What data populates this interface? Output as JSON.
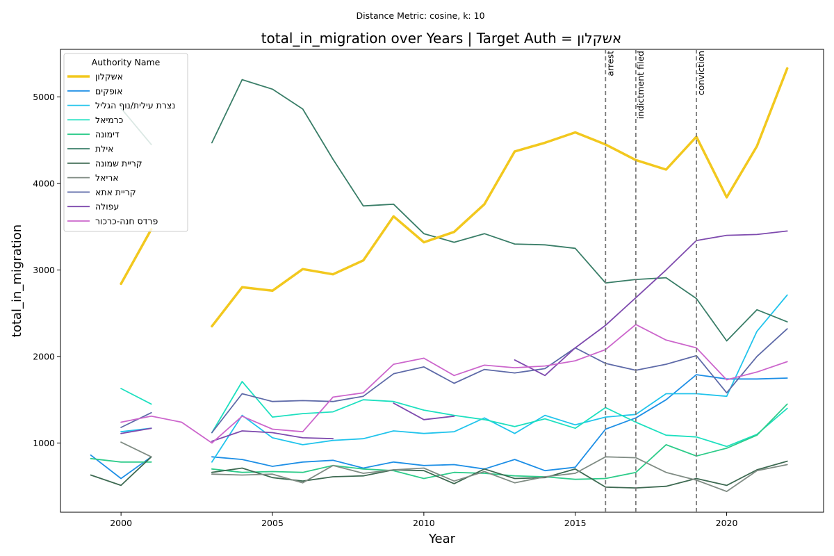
{
  "chart_data": {
    "type": "line",
    "suptitle": "Distance Metric: cosine, k: 10",
    "title": "total_in_migration over Years | Target Auth = אשקלון",
    "xlabel": "Year",
    "ylabel": "total_in_migration",
    "xlim": [
      1998,
      2023.2
    ],
    "ylim": [
      200,
      5550
    ],
    "xticks": [
      2000,
      2005,
      2010,
      2015,
      2020
    ],
    "yticks": [
      1000,
      2000,
      3000,
      4000,
      5000
    ],
    "legend": {
      "title": "Authority Name",
      "placement": "upper-left"
    },
    "x": [
      1999,
      2000,
      2001,
      2002,
      2003,
      2004,
      2005,
      2006,
      2007,
      2008,
      2009,
      2010,
      2011,
      2012,
      2013,
      2014,
      2015,
      2016,
      2017,
      2018,
      2019,
      2020,
      2021,
      2022
    ],
    "events": [
      {
        "year": 2016,
        "label": "arrest"
      },
      {
        "year": 2017,
        "label": "indictment filed"
      },
      {
        "year": 2019,
        "label": "conviction"
      }
    ],
    "series": [
      {
        "name": "אשקלון",
        "color": "#F2C81E",
        "width": 3.5,
        "target": true,
        "values": [
          null,
          2840,
          3470,
          null,
          2350,
          2800,
          2760,
          3010,
          2950,
          3110,
          3620,
          3320,
          3440,
          3760,
          4370,
          4470,
          4590,
          4450,
          4270,
          4160,
          4540,
          3840,
          4430,
          5330
        ]
      },
      {
        "name": "אופקים",
        "color": "#1E8FE6",
        "width": 1.8,
        "values": [
          860,
          590,
          840,
          null,
          840,
          810,
          730,
          780,
          800,
          710,
          780,
          740,
          750,
          700,
          810,
          680,
          720,
          1160,
          1290,
          1500,
          1790,
          1740,
          1740,
          1750
        ]
      },
      {
        "name": "נצרת עילית/נוף הגליל",
        "color": "#22C4EC",
        "width": 1.8,
        "values": [
          null,
          1130,
          1170,
          null,
          780,
          1320,
          1060,
          980,
          1030,
          1050,
          1140,
          1110,
          1130,
          1290,
          1110,
          1320,
          1210,
          1300,
          1330,
          1570,
          1570,
          1540,
          2290,
          2710
        ]
      },
      {
        "name": "כרמיאל",
        "color": "#1EE0C0",
        "width": 1.8,
        "values": [
          null,
          1630,
          1450,
          null,
          1120,
          1710,
          1300,
          1340,
          1360,
          1500,
          1480,
          1380,
          1320,
          1270,
          1190,
          1280,
          1170,
          1410,
          1240,
          1090,
          1070,
          960,
          1100,
          1400
        ]
      },
      {
        "name": "דימונה",
        "color": "#2ECC8A",
        "width": 1.8,
        "values": [
          820,
          780,
          780,
          null,
          700,
          660,
          670,
          660,
          740,
          700,
          680,
          590,
          660,
          650,
          620,
          610,
          580,
          590,
          660,
          980,
          850,
          940,
          1090,
          1450
        ]
      },
      {
        "name": "אילת",
        "color": "#3A7E68",
        "width": 1.8,
        "values": [
          null,
          4870,
          4450,
          null,
          4470,
          5200,
          5090,
          4860,
          4280,
          3740,
          3760,
          3420,
          3320,
          3420,
          3300,
          3290,
          3250,
          2850,
          2890,
          2910,
          2670,
          2180,
          2540,
          2400
        ]
      },
      {
        "name": "קריית שמונה",
        "color": "#3E6A52",
        "width": 1.8,
        "values": [
          630,
          510,
          840,
          null,
          660,
          710,
          600,
          560,
          610,
          620,
          690,
          680,
          530,
          700,
          590,
          600,
          700,
          490,
          480,
          500,
          590,
          510,
          690,
          790
        ]
      },
      {
        "name": "אריאל",
        "color": "#808C84",
        "width": 1.8,
        "values": [
          null,
          1010,
          840,
          null,
          640,
          630,
          640,
          540,
          740,
          650,
          690,
          710,
          560,
          670,
          540,
          610,
          650,
          840,
          830,
          660,
          570,
          440,
          680,
          750
        ]
      },
      {
        "name": "קריית אתא",
        "color": "#5E6AA8",
        "width": 1.8,
        "values": [
          null,
          1180,
          1350,
          null,
          1120,
          1570,
          1480,
          1490,
          1480,
          1540,
          1800,
          1880,
          1690,
          1850,
          1810,
          1860,
          2100,
          1920,
          1840,
          1910,
          2010,
          1580,
          2000,
          2320
        ]
      },
      {
        "name": "עפולה",
        "color": "#7E4AAE",
        "width": 1.8,
        "values": [
          null,
          1110,
          1170,
          null,
          1020,
          1140,
          1120,
          1060,
          1050,
          null,
          1460,
          1270,
          1310,
          null,
          1960,
          1780,
          2100,
          2360,
          2680,
          3000,
          3340,
          3400,
          3410,
          3450
        ]
      },
      {
        "name": "פרדס חנה-כרכור",
        "color": "#CC66CC",
        "width": 1.8,
        "values": [
          null,
          1240,
          1310,
          1240,
          1000,
          1310,
          1160,
          1130,
          1530,
          1580,
          1910,
          1980,
          1780,
          1900,
          1870,
          1890,
          1950,
          2080,
          2370,
          2190,
          2100,
          1730,
          1820,
          1940
        ]
      }
    ]
  }
}
